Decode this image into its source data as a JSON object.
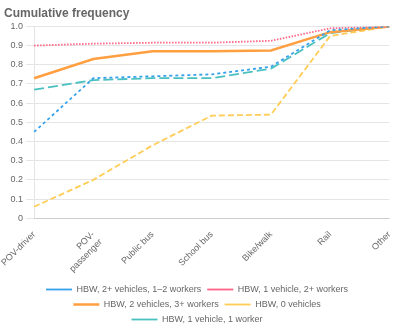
{
  "chart_data": {
    "type": "line",
    "title": "Cumulative frequency",
    "categories": [
      "POV-driver",
      "POV-\npassenger",
      "Public bus",
      "School bus",
      "Bike/walk",
      "Rail",
      "Other"
    ],
    "series": [
      {
        "name": "HBW, 2+ vehicles, 1–2 workers",
        "line_style": "coarse_dotted",
        "values": [
          0.45,
          0.73,
          0.74,
          0.75,
          0.79,
          0.98,
          1.0
        ]
      },
      {
        "name": "HBW, 1 vehicle, 2+ workers",
        "line_style": "fine_dotted",
        "values": [
          0.9,
          0.91,
          0.915,
          0.915,
          0.925,
          0.99,
          1.0
        ]
      },
      {
        "name": "HBW, 2 vehicles, 3+ workers",
        "line_style": "solid",
        "values": [
          0.73,
          0.83,
          0.87,
          0.87,
          0.875,
          0.97,
          1.0
        ]
      },
      {
        "name": "HBW, 0 vehicles",
        "line_style": "short_dash",
        "values": [
          0.06,
          0.2,
          0.38,
          0.535,
          0.54,
          0.95,
          1.0
        ]
      },
      {
        "name": "HBW, 1 vehicle, 1 worker",
        "line_style": "long_dash",
        "values": [
          0.67,
          0.72,
          0.73,
          0.73,
          0.78,
          0.965,
          1.0
        ]
      }
    ],
    "ylim": [
      0,
      1
    ],
    "yticks": [
      0,
      0.1,
      0.2,
      0.3,
      0.4,
      0.5,
      0.6,
      0.7,
      0.8,
      0.9,
      {
        "value": 1,
        "label": "1.0"
      }
    ],
    "grid": "y",
    "legend": "bottom"
  }
}
